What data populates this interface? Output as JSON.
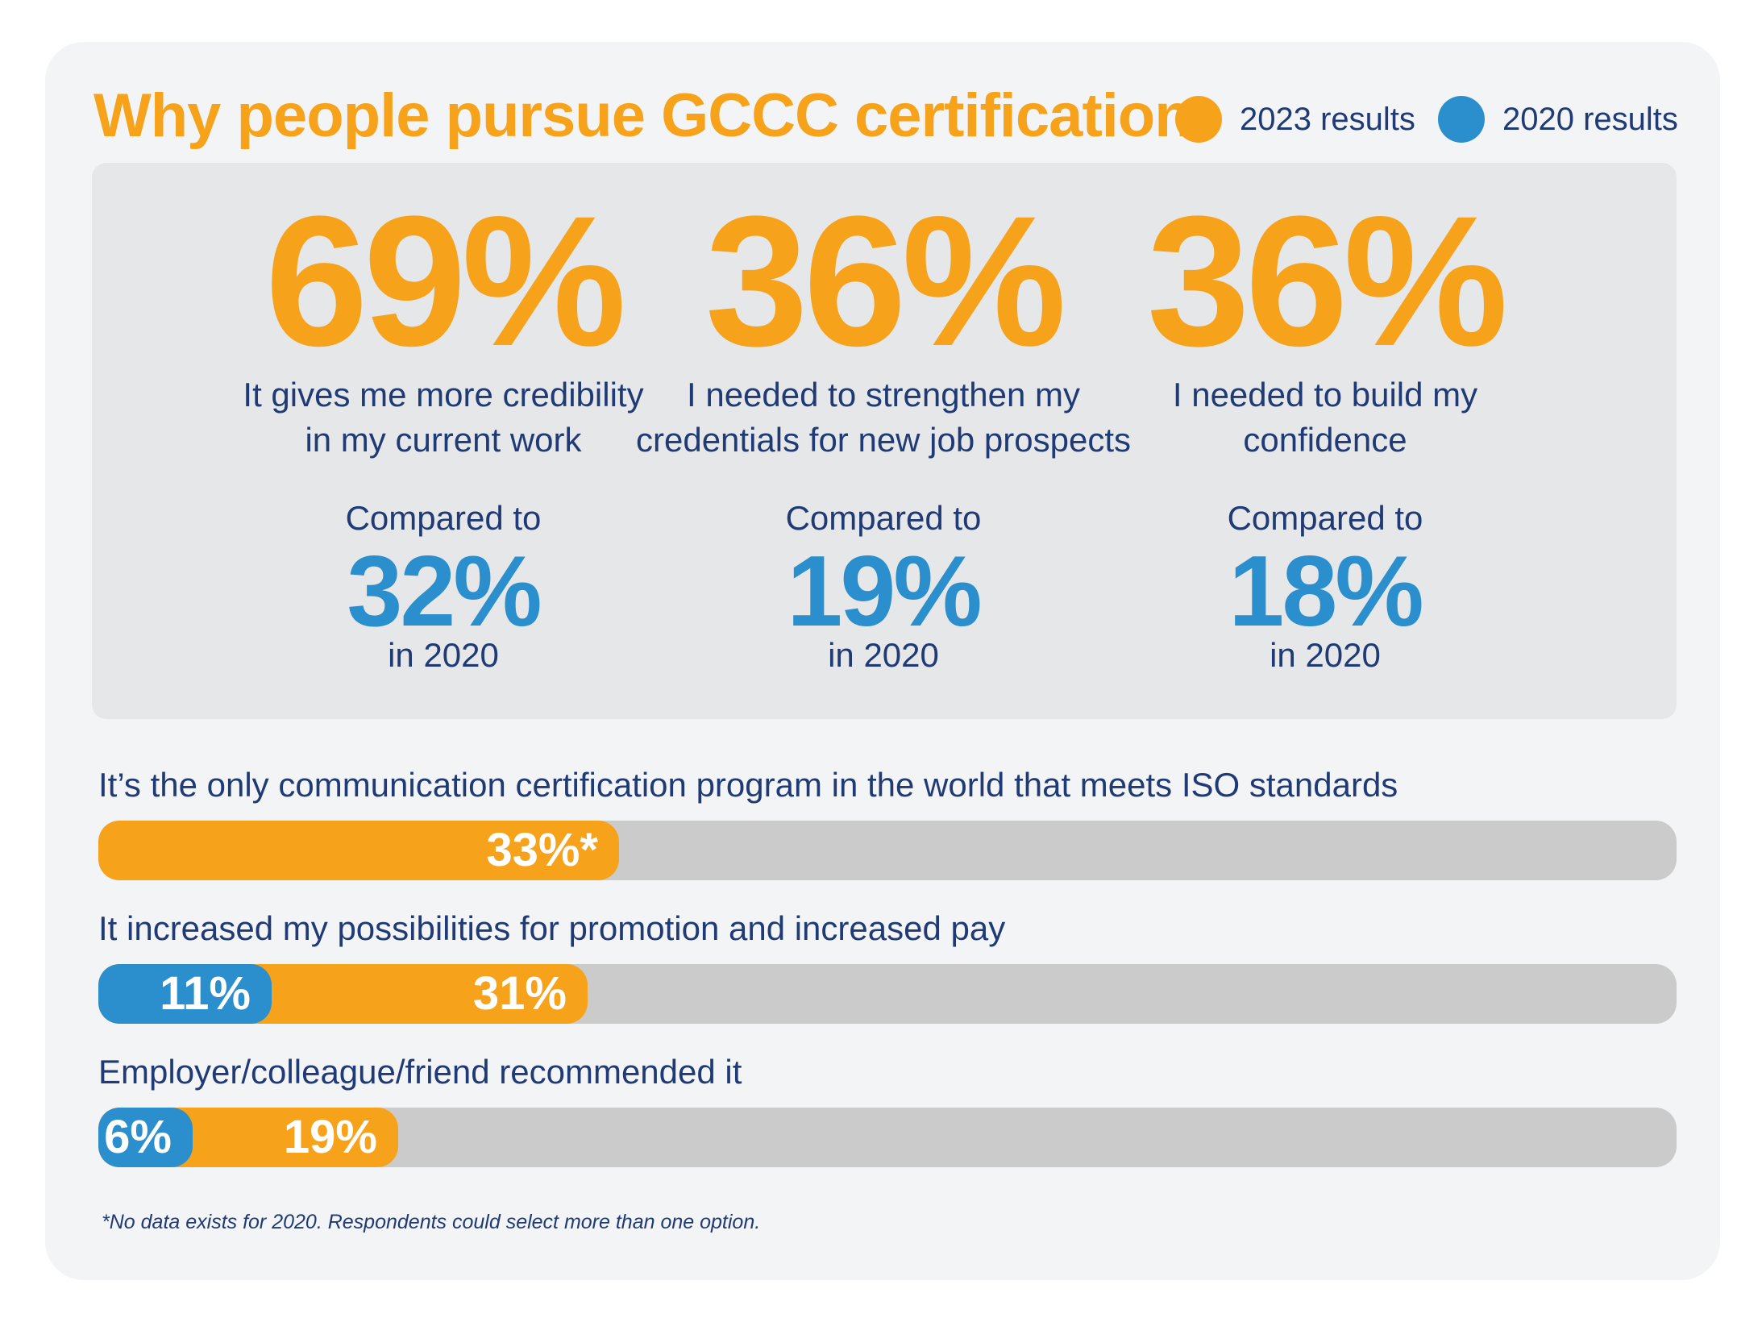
{
  "title": "Why people pursue GCCC certification",
  "legend": [
    {
      "label": "2023 results",
      "color": "#f7a21b"
    },
    {
      "label": "2020 results",
      "color": "#2b8fce"
    }
  ],
  "colors": {
    "orange_2023": "#f7a21b",
    "blue_2020": "#2b8fce",
    "text": "#1f3a75",
    "track": "#cbcbcb"
  },
  "stats": [
    {
      "value_2023": "69%",
      "reason_line1": "It gives me more credibility",
      "reason_line2": "in my current work",
      "compared": "Compared to",
      "value_2020": "32%",
      "year": "in 2020"
    },
    {
      "value_2023": "36%",
      "reason_line1": "I needed to strengthen my",
      "reason_line2": "credentials for new job prospects",
      "compared": "Compared to",
      "value_2020": "19%",
      "year": "in 2020"
    },
    {
      "value_2023": "36%",
      "reason_line1": "I needed to build my",
      "reason_line2": "confidence",
      "compared": "Compared to",
      "value_2020": "18%",
      "year": "in 2020"
    }
  ],
  "bars": [
    {
      "label": "It’s the only communication certification program in the world that meets ISO standards",
      "v2023": 33,
      "v2023_text": "33%*",
      "v2020": null,
      "v2020_text": ""
    },
    {
      "label": "It increased my possibilities for promotion and increased pay",
      "v2023": 31,
      "v2023_text": "31%",
      "v2020": 11,
      "v2020_text": "11%"
    },
    {
      "label": "Employer/colleague/friend recommended it",
      "v2023": 19,
      "v2023_text": "19%",
      "v2020": 6,
      "v2020_text": "6%"
    }
  ],
  "footnote": "*No data exists for 2020. Respondents could select more than one option.",
  "chart_data": {
    "type": "bar",
    "title": "Why people pursue GCCC certification",
    "categories": [
      "It gives me more credibility in my current work",
      "I needed to strengthen my credentials for new job prospects",
      "I needed to build my confidence",
      "It’s the only communication certification program in the world that meets ISO standards",
      "It increased my possibilities for promotion and increased pay",
      "Employer/colleague/friend recommended it"
    ],
    "series": [
      {
        "name": "2023 results",
        "values": [
          69,
          36,
          36,
          33,
          31,
          19
        ]
      },
      {
        "name": "2020 results",
        "values": [
          32,
          19,
          18,
          null,
          11,
          6
        ]
      }
    ],
    "unit": "%",
    "ylim": [
      0,
      100
    ],
    "legend_position": "top-right",
    "grid": false
  }
}
